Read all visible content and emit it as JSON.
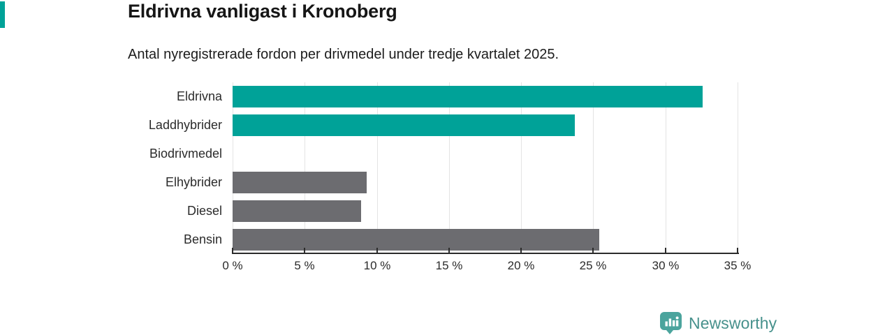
{
  "header": {
    "title": "Eldrivna vanligast i Kronoberg",
    "subtitle": "Antal nyregistrerade fordon per drivmedel under tredje kvartalet 2025."
  },
  "chart_data": {
    "type": "bar",
    "orientation": "horizontal",
    "title": "Eldrivna vanligast i Kronoberg",
    "subtitle": "Antal nyregistrerade fordon per drivmedel under tredje kvartalet 2025.",
    "categories": [
      "Eldrivna",
      "Laddhybrider",
      "Biodrivmedel",
      "Elhybrider",
      "Diesel",
      "Bensin"
    ],
    "values": [
      32.6,
      23.7,
      0,
      9.3,
      8.9,
      25.4
    ],
    "unit": "%",
    "bar_colors": [
      "#00a298",
      "#00a298",
      "#00a298",
      "#6c6c70",
      "#6c6c70",
      "#6c6c70"
    ],
    "x_ticks": [
      0,
      5,
      10,
      15,
      20,
      25,
      30,
      35
    ],
    "x_tick_labels": [
      "0 %",
      "5 %",
      "10 %",
      "15 %",
      "20 %",
      "25 %",
      "30 %",
      "35 %"
    ],
    "xlim": [
      0,
      35
    ],
    "grid": true,
    "legend": "none",
    "xlabel": "",
    "ylabel": ""
  },
  "branding": {
    "logo_text": "Newsworthy",
    "accent_color": "#00a298",
    "logo_icon_color": "#4ba49d",
    "logo_text_color": "#47918c"
  }
}
